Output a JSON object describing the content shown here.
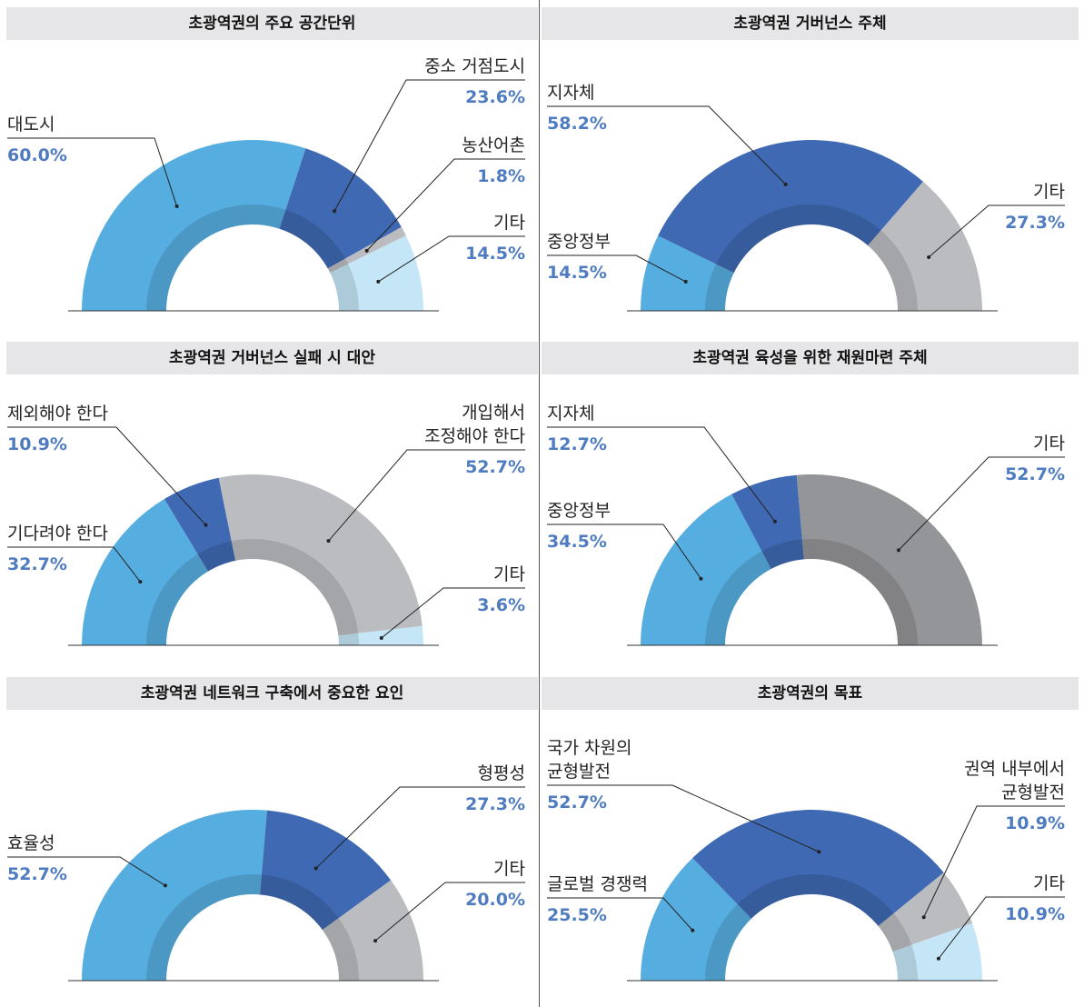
{
  "chart_data": [
    {
      "type": "semi-donut",
      "title": "초광역권의 주요 공간단위",
      "categories": [
        "대도시",
        "중소 거점도시",
        "농산어촌",
        "기타"
      ],
      "values": [
        60.0,
        23.6,
        1.8,
        14.5
      ],
      "value_labels": [
        "60.0%",
        "23.6%",
        "1.8%",
        "14.5%"
      ],
      "colors": [
        "#56aee0",
        "#3f69b2",
        "#bbbcc0",
        "#c5e6f7"
      ]
    },
    {
      "type": "semi-donut",
      "title": "초광역권 거버넌스 주체",
      "categories": [
        "중앙정부",
        "지자체",
        "기타"
      ],
      "values": [
        14.5,
        58.2,
        27.3
      ],
      "value_labels": [
        "14.5%",
        "58.2%",
        "27.3%"
      ],
      "colors": [
        "#56aee0",
        "#3f69b2",
        "#bbbcc0"
      ]
    },
    {
      "type": "semi-donut",
      "title": "초광역권 거버넌스 실패 시 대안",
      "categories": [
        "기다려야 한다",
        "제외해야 한다",
        "개입해서\n조정해야 한다",
        "기타"
      ],
      "values": [
        32.7,
        10.9,
        52.7,
        3.6
      ],
      "value_labels": [
        "32.7%",
        "10.9%",
        "52.7%",
        "3.6%"
      ],
      "colors": [
        "#56aee0",
        "#3f69b2",
        "#bbbcc0",
        "#c5e6f7"
      ]
    },
    {
      "type": "semi-donut",
      "title": "초광역권 육성을 위한 재원마련 주체",
      "categories": [
        "중앙정부",
        "지자체",
        "기타"
      ],
      "values": [
        34.5,
        12.7,
        52.7
      ],
      "value_labels": [
        "34.5%",
        "12.7%",
        "52.7%"
      ],
      "colors": [
        "#56aee0",
        "#3f69b2",
        "#949598"
      ]
    },
    {
      "type": "semi-donut",
      "title": "초광역권 네트워크 구축에서 중요한 요인",
      "categories": [
        "효율성",
        "형평성",
        "기타"
      ],
      "values": [
        52.7,
        27.3,
        20.0
      ],
      "value_labels": [
        "52.7%",
        "27.3%",
        "20.0%"
      ],
      "colors": [
        "#56aee0",
        "#3f69b2",
        "#bbbcc0"
      ]
    },
    {
      "type": "semi-donut",
      "title": "초광역권의 목표",
      "categories": [
        "글로벌 경쟁력",
        "국가 차원의\n균형발전",
        "권역 내부에서\n균형발전",
        "기타"
      ],
      "values": [
        25.5,
        52.7,
        10.9,
        10.9
      ],
      "value_labels": [
        "25.5%",
        "52.7%",
        "10.9%",
        "10.9%"
      ],
      "colors": [
        "#56aee0",
        "#3f69b2",
        "#bbbcc0",
        "#c5e6f7"
      ]
    }
  ]
}
